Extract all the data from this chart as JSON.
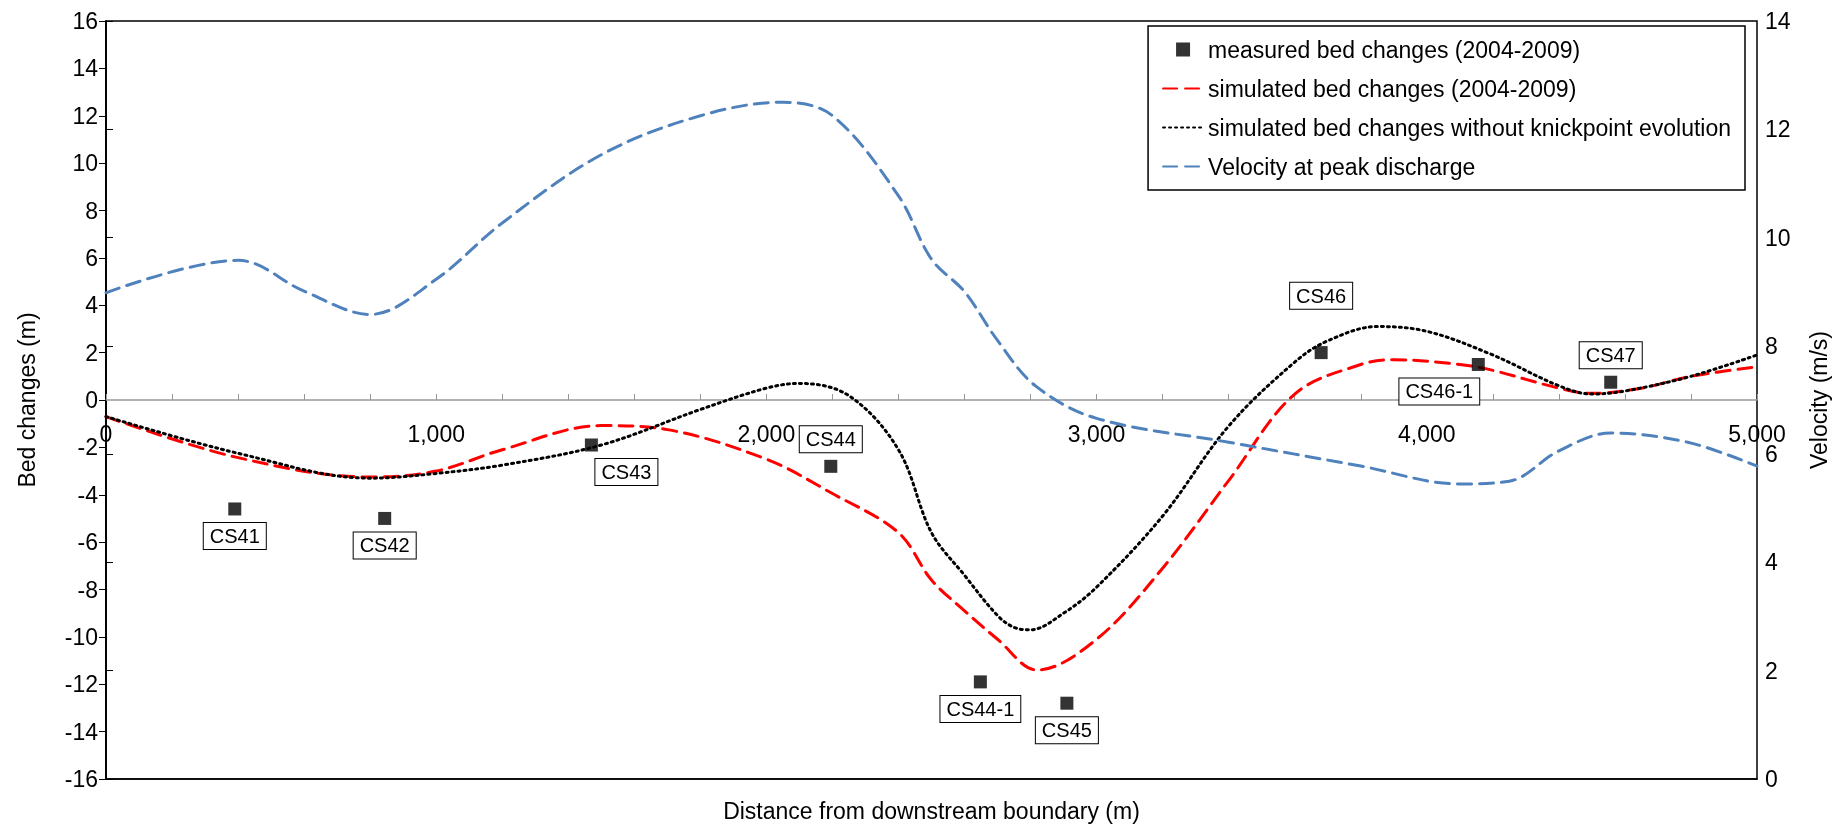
{
  "chart_data": {
    "type": "line",
    "xlabel": "Distance from downstream boundary (m)",
    "ylabel": "Bed changes (m)",
    "y2label": "Velocity (m/s)",
    "xlim": [
      0,
      5000
    ],
    "xticks": [
      0,
      {
        "value": 200,
        "label": null
      },
      {
        "value": 400,
        "label": null
      },
      {
        "value": 600,
        "label": null
      },
      {
        "value": 800,
        "label": null
      },
      {
        "value": 1000,
        "label": "1,000"
      },
      {
        "value": 1200,
        "label": null
      },
      {
        "value": 1400,
        "label": null
      },
      {
        "value": 1600,
        "label": null
      },
      {
        "value": 1800,
        "label": null
      },
      {
        "value": 2000,
        "label": "2,000"
      },
      {
        "value": 2200,
        "label": null
      },
      {
        "value": 2400,
        "label": null
      },
      {
        "value": 2600,
        "label": null
      },
      {
        "value": 2800,
        "label": null
      },
      {
        "value": 3000,
        "label": "3,000"
      },
      {
        "value": 3200,
        "label": null
      },
      {
        "value": 3400,
        "label": null
      },
      {
        "value": 3600,
        "label": null
      },
      {
        "value": 3800,
        "label": null
      },
      {
        "value": 4000,
        "label": "4,000"
      },
      {
        "value": 4200,
        "label": null
      },
      {
        "value": 4400,
        "label": null
      },
      {
        "value": 4600,
        "label": null
      },
      {
        "value": 4800,
        "label": null
      },
      {
        "value": 5000,
        "label": "5,000"
      }
    ],
    "ylim": [
      -16,
      16
    ],
    "yticks": [
      -16,
      -14,
      -12,
      -10,
      -8,
      -6,
      -4,
      -2,
      0,
      2,
      4,
      6,
      8,
      10,
      12,
      14,
      16
    ],
    "y2lim": [
      0,
      14
    ],
    "y2ticks": [
      0,
      2,
      4,
      6,
      8,
      10,
      12,
      14
    ],
    "grid": false,
    "legend": "top right",
    "series": [
      {
        "name": "measured bed changes (2004-2009)",
        "type": "scatter",
        "marker": "square",
        "color": "#000000",
        "x": [
          390,
          844,
          1470,
          2195,
          2648,
          2910,
          3680,
          4156,
          4557
        ],
        "values": [
          -4.6,
          -5.0,
          -1.9,
          -2.8,
          -11.9,
          -12.8,
          2.0,
          1.5,
          0.75
        ]
      },
      {
        "name": "simulated bed changes (2004-2009)",
        "marker": "none",
        "line_style": "dashed",
        "color": "#ff0000",
        "x": [
          0,
          390,
          800,
          1000,
          1200,
          1500,
          1700,
          2000,
          2200,
          2400,
          2500,
          2600,
          2700,
          2820,
          3000,
          3200,
          3400,
          3600,
          3800,
          3900,
          4100,
          4200,
          4400,
          4500,
          4650,
          4800,
          5000
        ],
        "values": [
          -0.7,
          -2.4,
          -3.25,
          -3.0,
          -2.1,
          -1.08,
          -1.25,
          -2.5,
          -3.95,
          -5.6,
          -7.6,
          -8.9,
          -10.1,
          -11.4,
          -10.1,
          -7.1,
          -3.4,
          0.25,
          1.5,
          1.7,
          1.5,
          1.25,
          0.5,
          0.28,
          0.5,
          1.0,
          1.4
        ]
      },
      {
        "name": "simulated bed changes without knickpoint evolution",
        "marker": "none",
        "line_style": "dotted",
        "color": "#000000",
        "x": [
          0,
          400,
          800,
          1000,
          1200,
          1500,
          1800,
          2000,
          2100,
          2250,
          2400,
          2500,
          2600,
          2700,
          2750,
          2800,
          2900,
          3000,
          3200,
          3400,
          3600,
          3700,
          3850,
          4000,
          4200,
          4400,
          4500,
          4600,
          4800,
          5000
        ],
        "values": [
          -0.7,
          -2.25,
          -3.3,
          -3.1,
          -2.75,
          -1.9,
          -0.4,
          0.5,
          0.7,
          0.18,
          -2.1,
          -5.6,
          -7.4,
          -9.1,
          -9.6,
          -9.7,
          -9.0,
          -7.9,
          -4.9,
          -1.1,
          1.6,
          2.5,
          3.1,
          2.9,
          1.9,
          0.6,
          0.25,
          0.38,
          1.0,
          1.9
        ]
      },
      {
        "name": "Velocity at peak discharge",
        "marker": "none",
        "line_style": "dashed",
        "axis": "y2",
        "color": "#4f81bd",
        "x": [
          0,
          400,
          600,
          800,
          1000,
          1200,
          1500,
          1800,
          2050,
          2200,
          2400,
          2500,
          2600,
          2700,
          2815,
          3000,
          3400,
          3800,
          4100,
          4250,
          4400,
          4557,
          4790,
          5000
        ],
        "values": [
          8.98,
          9.58,
          9.01,
          8.58,
          9.23,
          10.27,
          11.53,
          12.25,
          12.5,
          12.25,
          10.77,
          9.6,
          9.0,
          8.1,
          7.26,
          6.66,
          6.22,
          5.78,
          5.45,
          5.5,
          6.06,
          6.39,
          6.22,
          5.78
        ]
      }
    ],
    "annotations": [
      {
        "text": "CS41",
        "x": 390,
        "y": -4.6
      },
      {
        "text": "CS42",
        "x": 844,
        "y": -5.0
      },
      {
        "text": "CS43",
        "x": 1470,
        "y": -1.9
      },
      {
        "text": "CS44",
        "x": 2195,
        "y": -2.8
      },
      {
        "text": "CS44-1",
        "x": 2648,
        "y": -11.9
      },
      {
        "text": "CS45",
        "x": 2910,
        "y": -12.8
      },
      {
        "text": "CS46",
        "x": 3680,
        "y": 2.0
      },
      {
        "text": "CS46-1",
        "x": 4156,
        "y": 1.5
      },
      {
        "text": "CS47",
        "x": 4557,
        "y": 0.75
      }
    ]
  }
}
